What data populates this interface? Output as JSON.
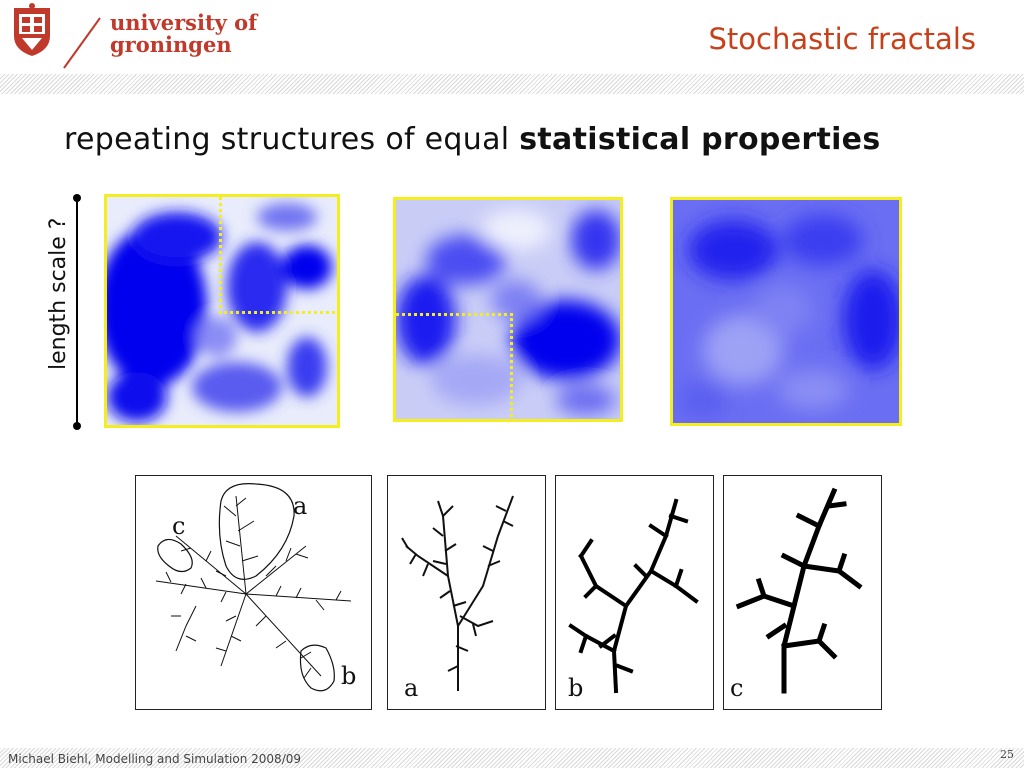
{
  "header": {
    "logo_line1": "university of",
    "logo_line2": "groningen",
    "slide_title": "Stochastic fractals",
    "brand_color": "#c0392b"
  },
  "main": {
    "subtitle_plain": "repeating structures of equal ",
    "subtitle_bold": "statistical properties",
    "scale_label": "length scale ?",
    "highlight_color": "#f5ee1f",
    "cloud_color": "#0000ee",
    "fractal_labels": {
      "overview_a": "a",
      "overview_b": "b",
      "overview_c": "c",
      "panel_a": "a",
      "panel_b": "b",
      "panel_c": "c"
    }
  },
  "footer": {
    "credit": "Michael Biehl, Modelling and Simulation 2008/09",
    "page_number": "25"
  }
}
